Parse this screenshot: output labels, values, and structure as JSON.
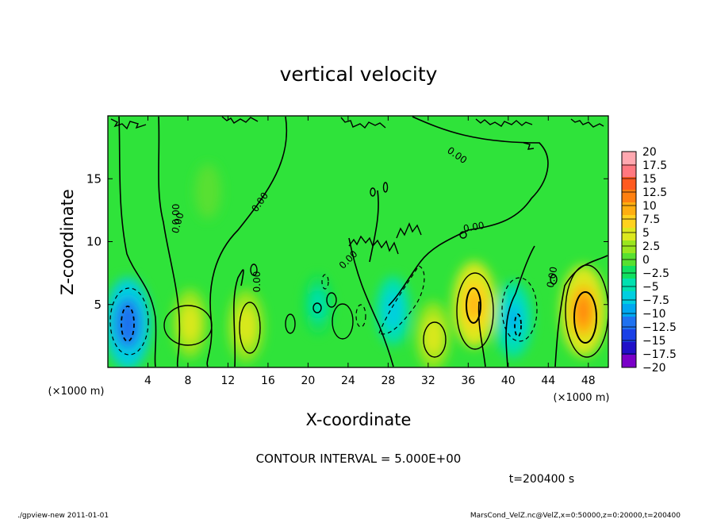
{
  "chart_data": {
    "type": "heatmap",
    "title": "vertical velocity",
    "xlabel": "X-coordinate",
    "ylabel": "Z-coordinate",
    "x_units_label": "(×1000 m)",
    "xlim": [
      0,
      50
    ],
    "ylim": [
      0,
      20
    ],
    "x_ticks": [
      4,
      8,
      12,
      16,
      20,
      24,
      28,
      32,
      36,
      40,
      44,
      48
    ],
    "y_ticks": [
      5,
      10,
      15
    ],
    "contour_interval_text": "CONTOUR INTERVAL = 5.000E+00",
    "contour_labels": [
      "0.00",
      "0.00",
      "0.00",
      "0.00",
      "0.00",
      "0.00",
      "0.00",
      "0.00"
    ],
    "time_text": "t=200400 s",
    "colorbar": {
      "levels": [
        -20,
        -17.5,
        -15,
        -12.5,
        -10,
        -7.5,
        -5,
        -2.5,
        0,
        2.5,
        5,
        7.5,
        10,
        12.5,
        15,
        17.5,
        20
      ],
      "tick_labels": [
        "20",
        "17.5",
        "15",
        "12.5",
        "10",
        "7.5",
        "5",
        "2.5",
        "0",
        "−2.5",
        "−5",
        "−7.5",
        "−10",
        "−12.5",
        "−15",
        "−17.5",
        "−20"
      ],
      "colors": [
        "#7a00c8",
        "#2010c8",
        "#1a40e6",
        "#1f72f0",
        "#00a8f0",
        "#00cfe0",
        "#00e0b0",
        "#10e060",
        "#58e030",
        "#9ae61e",
        "#dce81e",
        "#ffd21e",
        "#ffae10",
        "#ff8010",
        "#ff5a20",
        "#ff7880",
        "#ffa8b0"
      ]
    },
    "features": [
      {
        "x": 2.0,
        "z": 3.5,
        "value": -12.5
      },
      {
        "x": 8.2,
        "z": 3.5,
        "value": 6
      },
      {
        "x": 13.8,
        "z": 3.3,
        "value": 7
      },
      {
        "x": 21.0,
        "z": 5.0,
        "value": -3
      },
      {
        "x": 28.5,
        "z": 4.5,
        "value": -6
      },
      {
        "x": 32.5,
        "z": 2.5,
        "value": 6
      },
      {
        "x": 36.6,
        "z": 5.0,
        "value": 11
      },
      {
        "x": 40.5,
        "z": 3.8,
        "value": -8
      },
      {
        "x": 47.5,
        "z": 4.5,
        "value": 12.5
      },
      {
        "x": 10.0,
        "z": 14.0,
        "value": 2
      }
    ]
  },
  "footer": {
    "left": "./gpview-new   2011-01-01",
    "right": "MarsCond_VelZ.nc@VelZ,x=0:50000,z=0:20000,t=200400"
  }
}
